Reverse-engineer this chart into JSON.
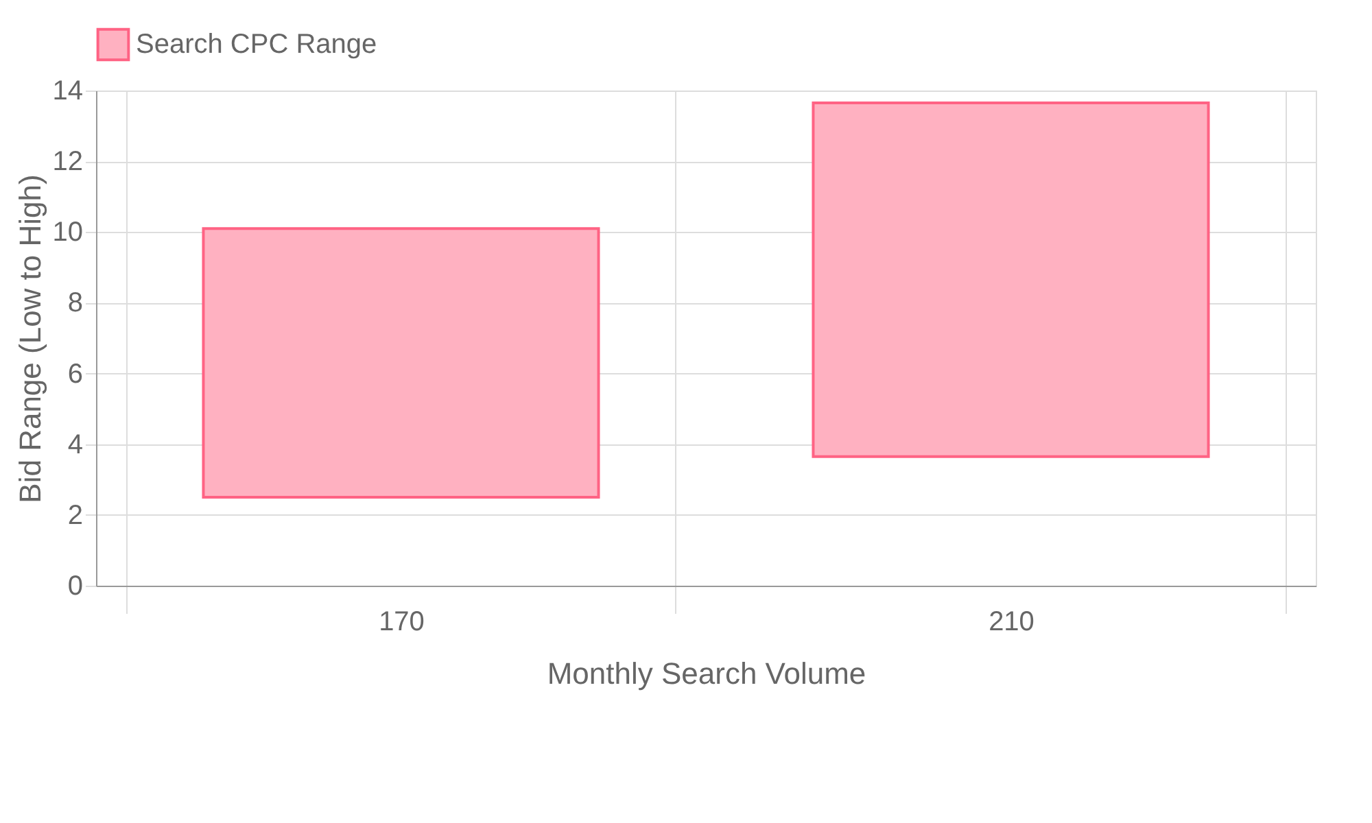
{
  "chart_data": {
    "type": "bar",
    "categories": [
      "170",
      "210"
    ],
    "series": [
      {
        "name": "Search CPC Range",
        "color": "#ffb1c1",
        "values": [
          7.6,
          10.0
        ],
        "base": [
          2.5,
          3.65
        ]
      }
    ],
    "xlabel": "Monthly Search Volume",
    "ylabel": "Bid Range (Low to High)",
    "ylim": [
      0,
      14
    ],
    "yticks": [
      0,
      2,
      4,
      6,
      8,
      10,
      12,
      14
    ],
    "grid": true,
    "legend": "top"
  }
}
